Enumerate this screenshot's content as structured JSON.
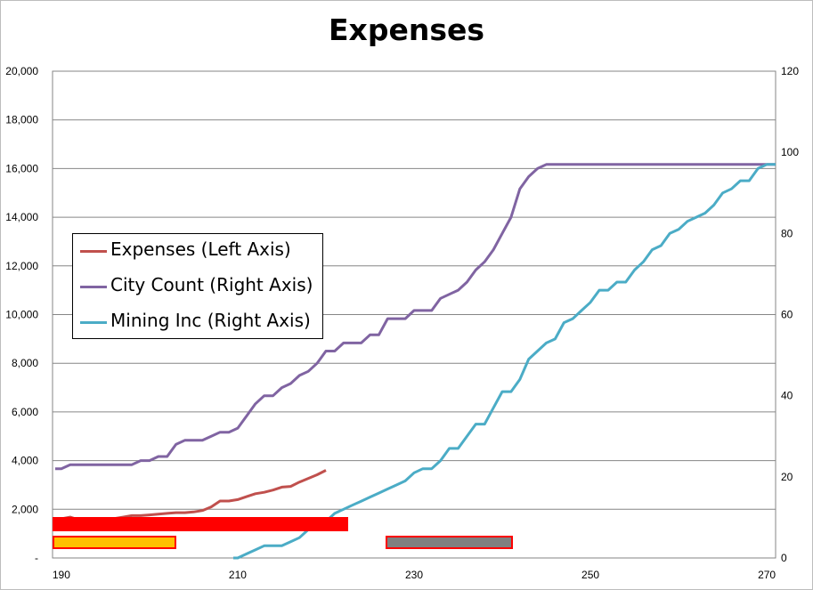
{
  "chart_data": {
    "type": "line",
    "title": "Expenses",
    "xlabel": "",
    "ylabel": "",
    "xlim": [
      189,
      271
    ],
    "ylim": [
      0,
      20000
    ],
    "y2lim": [
      0,
      120
    ],
    "x_ticks": [
      "190",
      "210",
      "230",
      "250",
      "270"
    ],
    "y_ticks": [
      "-",
      "2,000",
      "4,000",
      "6,000",
      "8,000",
      "10,000",
      "12,000",
      "14,000",
      "16,000",
      "18,000",
      "20,000"
    ],
    "y2_ticks": [
      "0",
      "20",
      "40",
      "60",
      "80",
      "100",
      "120"
    ],
    "grid": "horizontal",
    "legend_position": "center-left",
    "series": [
      {
        "name": "Expenses (Left Axis)",
        "axis": "left",
        "color": "#c0504d",
        "x": [
          189.3,
          190,
          191,
          192,
          193,
          194,
          195,
          196,
          197,
          198,
          199,
          200,
          201,
          202,
          203,
          204,
          205,
          206,
          207,
          208,
          209,
          210,
          211,
          212,
          213,
          214,
          215,
          216,
          217,
          218,
          219,
          220
        ],
        "y": [
          1560,
          1610,
          1680,
          1560,
          1600,
          1610,
          1610,
          1620,
          1680,
          1740,
          1740,
          1770,
          1800,
          1830,
          1860,
          1860,
          1890,
          1950,
          2100,
          2340,
          2340,
          2400,
          2520,
          2640,
          2700,
          2790,
          2910,
          2940,
          3120,
          3270,
          3420,
          3600
        ]
      },
      {
        "name": "City Count (Right Axis)",
        "axis": "right",
        "color": "#8064a2",
        "x": [
          189.3,
          190,
          191,
          192,
          193,
          194,
          195,
          196,
          197,
          198,
          199,
          200,
          201,
          202,
          203,
          204,
          205,
          206,
          207,
          208,
          209,
          210,
          211,
          212,
          213,
          214,
          215,
          216,
          217,
          218,
          219,
          220,
          221,
          222,
          223,
          224,
          225,
          226,
          227,
          228,
          229,
          230,
          231,
          232,
          233,
          234,
          235,
          236,
          237,
          238,
          239,
          240,
          241,
          242,
          243,
          244,
          245,
          246,
          250,
          255,
          260,
          265,
          270,
          271
        ],
        "y": [
          22,
          22,
          23,
          23,
          23,
          23,
          23,
          23,
          23,
          23,
          24,
          24,
          25,
          25,
          28,
          29,
          29,
          29,
          30,
          31,
          31,
          32,
          35,
          38,
          40,
          40,
          42,
          43,
          45,
          46,
          48,
          51,
          51,
          53,
          53,
          53,
          55,
          55,
          59,
          59,
          59,
          61,
          61,
          61,
          64,
          65,
          66,
          68,
          71,
          73,
          76,
          80,
          84,
          91,
          94,
          96,
          97,
          97,
          97,
          97,
          97,
          97,
          97,
          97
        ]
      },
      {
        "name": "Mining Inc (Right Axis)",
        "axis": "right",
        "color": "#4bacc6",
        "x": [
          209.5,
          210,
          211,
          212,
          213,
          214,
          215,
          216,
          217,
          218,
          219,
          220,
          221,
          222,
          223,
          224,
          225,
          226,
          227,
          228,
          229,
          230,
          231,
          232,
          233,
          234,
          235,
          236,
          237,
          238,
          239,
          240,
          241,
          242,
          243,
          244,
          245,
          246,
          247,
          248,
          249,
          250,
          251,
          252,
          253,
          254,
          255,
          256,
          257,
          258,
          259,
          260,
          261,
          262,
          263,
          264,
          265,
          266,
          267,
          268,
          269,
          270,
          271
        ],
        "y": [
          0,
          0,
          1,
          2,
          3,
          3,
          3,
          4,
          5,
          7,
          8,
          9,
          11,
          12,
          13,
          14,
          15,
          16,
          17,
          18,
          19,
          21,
          22,
          22,
          24,
          27,
          27,
          30,
          33,
          33,
          37,
          41,
          41,
          44,
          49,
          51,
          53,
          54,
          58,
          59,
          61,
          63,
          66,
          66,
          68,
          68,
          71,
          73,
          76,
          77,
          80,
          81,
          83,
          84,
          85,
          87,
          90,
          91,
          93,
          93,
          96,
          97,
          97
        ]
      }
    ]
  },
  "shape_colors": {
    "bar_red_fill": "#ff0000",
    "bar_orange_fill": "#ffc000",
    "bar_gray_fill": "#808080",
    "bar_border": "#ff0000"
  }
}
